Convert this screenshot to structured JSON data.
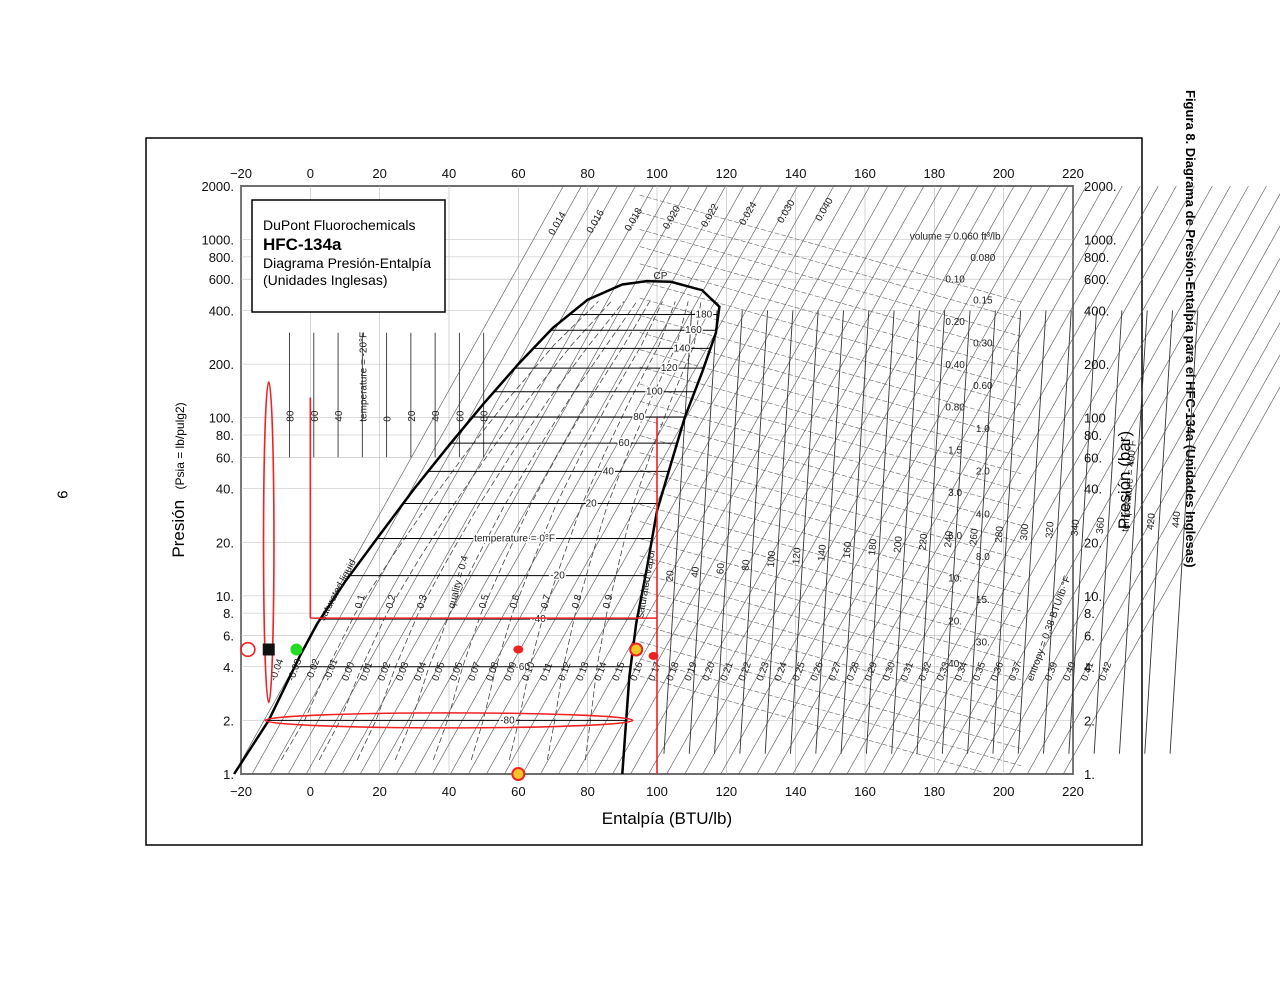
{
  "page": {
    "number": "9",
    "caption": "Figura 8. Diagrama de Presión-Entalpía para el HFC-134a (Unidades Inglesas)"
  },
  "legend": {
    "maker": "DuPont Fluorochemicals",
    "product": "HFC-134a",
    "title": "Diagrama Presión-Entalpía",
    "units": "(Unidades Inglesas)"
  },
  "chart_data": {
    "type": "line",
    "xlabel": "Entalpía (BTU/lb)",
    "ylabel_main": "Presión",
    "ylabel_unit": "(Psia = lb/pulg2)",
    "ylabel_right": "Presión (bar)",
    "xlim": [
      -20,
      220
    ],
    "ylim": [
      1,
      2000
    ],
    "y_scale": "log",
    "grid": true,
    "x_ticks": [
      "−20",
      "0",
      "20",
      "40",
      "60",
      "80",
      "100",
      "120",
      "140",
      "160",
      "180",
      "200",
      "220"
    ],
    "y_ticks_left": [
      {
        "v": 2000,
        "label": "2000."
      },
      {
        "v": 1000,
        "label": "1000."
      },
      {
        "v": 800,
        "label": "800."
      },
      {
        "v": 600,
        "label": "600."
      },
      {
        "v": 400,
        "label": "400."
      },
      {
        "v": 200,
        "label": "200."
      },
      {
        "v": 100,
        "label": "100."
      },
      {
        "v": 80,
        "label": "80."
      },
      {
        "v": 60,
        "label": "60."
      },
      {
        "v": 40,
        "label": "40."
      },
      {
        "v": 20,
        "label": "20."
      },
      {
        "v": 10,
        "label": "10."
      },
      {
        "v": 8,
        "label": "8."
      },
      {
        "v": 6,
        "label": "6."
      },
      {
        "v": 4,
        "label": "4."
      },
      {
        "v": 2,
        "label": "2."
      },
      {
        "v": 1,
        "label": "1."
      }
    ],
    "y_ticks_right": [
      {
        "v": 2000,
        "label": "2000."
      },
      {
        "v": 1000,
        "label": "1000."
      },
      {
        "v": 800,
        "label": "800."
      },
      {
        "v": 600,
        "label": "600."
      },
      {
        "v": 400,
        "label": "400."
      },
      {
        "v": 200,
        "label": "200."
      },
      {
        "v": 100,
        "label": "100"
      },
      {
        "v": 80,
        "label": "80."
      },
      {
        "v": 60,
        "label": "60."
      },
      {
        "v": 40,
        "label": "40."
      },
      {
        "v": 20,
        "label": "20."
      },
      {
        "v": 10,
        "label": "10."
      },
      {
        "v": 8,
        "label": "8."
      },
      {
        "v": 6,
        "label": "6."
      },
      {
        "v": 4,
        "label": "4."
      },
      {
        "v": 2,
        "label": "2."
      },
      {
        "v": 1,
        "label": "1."
      }
    ],
    "saturation_liquid": [
      [
        -22,
        1
      ],
      [
        -12,
        2
      ],
      [
        -3,
        4.6
      ],
      [
        2,
        7
      ],
      [
        10,
        12
      ],
      [
        20,
        22
      ],
      [
        30,
        40
      ],
      [
        40,
        70
      ],
      [
        50,
        120
      ],
      [
        60,
        200
      ],
      [
        70,
        320
      ],
      [
        80,
        460
      ],
      [
        90,
        560
      ],
      [
        97,
        585
      ]
    ],
    "saturation_vapor": [
      [
        97,
        585
      ],
      [
        104,
        580
      ],
      [
        113,
        520
      ],
      [
        118,
        420
      ],
      [
        117,
        300
      ],
      [
        113,
        180
      ],
      [
        108,
        100
      ],
      [
        104,
        55
      ],
      [
        100,
        30
      ],
      [
        97,
        14
      ],
      [
        94,
        7
      ],
      [
        92,
        3.5
      ],
      [
        90,
        1
      ]
    ],
    "isotherms_in_dome": [
      {
        "label": "180",
        "p": 380
      },
      {
        "label": "160",
        "p": 310
      },
      {
        "label": "140",
        "p": 245
      },
      {
        "label": "120",
        "p": 190
      },
      {
        "label": "100",
        "p": 140
      },
      {
        "label": "80",
        "p": 101
      },
      {
        "label": "60",
        "p": 72
      },
      {
        "label": "40",
        "p": 50
      },
      {
        "label": "20",
        "p": 33
      },
      {
        "label": "temperature = 0°F",
        "p": 21
      },
      {
        "label": "-20",
        "p": 13
      },
      {
        "label": "-40",
        "p": 7.4
      },
      {
        "label": "-60",
        "p": 4
      },
      {
        "label": "-80",
        "p": 2
      }
    ],
    "quality_labels": [
      "0.1",
      "0.2",
      "0.3",
      "quality = 0.4",
      "0.5",
      "0.6",
      "0.7",
      "0.8",
      "0.9"
    ],
    "volume_labels": [
      "0.014",
      "0.016",
      "0.018",
      "0.020",
      "0.022",
      "0.024",
      "0.030",
      "0.040",
      "volume = 0.060 ft³/lb",
      "0.080",
      "0.10",
      "0.15",
      "0.20",
      "0.30",
      "0.40",
      "0.60",
      "0.80",
      "1.0",
      "1.5",
      "2.0",
      "3.0",
      "4.0",
      "6.0",
      "8.0",
      "10.",
      "15.",
      "20.",
      "30.",
      "40."
    ],
    "entropy_labels": [
      "-0.04",
      "-0.03",
      "-0.02",
      "-0.01",
      "0.00",
      "0.01",
      "0.02",
      "0.03",
      "0.04",
      "0.05",
      "0.06",
      "0.07",
      "0.08",
      "0.09",
      "0.10",
      "0.11",
      "0.12",
      "0.13",
      "0.14",
      "0.15",
      "0.16",
      "0.17",
      "0.18",
      "0.19",
      "0.20",
      "0.21",
      "0.22",
      "0.23",
      "0.24",
      "0.25",
      "0.26",
      "0.27",
      "0.28",
      "0.29",
      "0.30",
      "0.31",
      "0.32",
      "0.33",
      "0.34",
      "0.35",
      "0.36",
      "0.37",
      "entropy = 0.38 BTU/lb·°F",
      "0.39",
      "0.40",
      "0.41",
      "0.42"
    ],
    "superheat_temp_labels": [
      "20",
      "40",
      "60",
      "80",
      "100",
      "120",
      "140",
      "160",
      "180",
      "200",
      "220",
      "240",
      "260",
      "280",
      "300",
      "320",
      "340",
      "360",
      "temperature = 400°F",
      "420",
      "440"
    ],
    "liquid_temp_labels": [
      "80",
      "60",
      "40",
      "temperature = -20°F",
      "0",
      "20",
      "40",
      "60",
      "80"
    ],
    "dome_labels": {
      "liquid": "saturated liquid",
      "vapor": "saturated vapor",
      "cp": "CP"
    },
    "annotations": {
      "red_lines": [
        {
          "x1": 100,
          "y1": 1,
          "x2": 100,
          "y2": 100
        },
        {
          "x1": 0,
          "y1": 7.5,
          "x2": 100,
          "y2": 7.5
        },
        {
          "x1": 0,
          "y1": 7.5,
          "x2": 0,
          "y2": 130
        }
      ],
      "red_ellipses": [
        {
          "cx": 40,
          "cy": 2,
          "rx": 53,
          "ry": 0.06
        },
        {
          "cx": -12,
          "cy": 20,
          "rx": 1.5,
          "ry": 0.9
        },
        {
          "cx": -18,
          "cy": 5,
          "rx": 2,
          "ry": 0.05
        }
      ],
      "markers": [
        {
          "x": -12,
          "y": 5,
          "color": "#111111",
          "shape": "square"
        },
        {
          "x": -4,
          "y": 5,
          "color": "#22dd22",
          "shape": "circle"
        },
        {
          "x": 60,
          "y": 5,
          "color": "#ee2222",
          "shape": "dot"
        },
        {
          "x": 94,
          "y": 5,
          "color": "#f2c62a",
          "shape": "ring"
        },
        {
          "x": 99,
          "y": 4.6,
          "color": "#ee2222",
          "shape": "dot"
        },
        {
          "x": 60,
          "y": 1,
          "color": "#f2c62a",
          "shape": "ring"
        }
      ]
    }
  }
}
